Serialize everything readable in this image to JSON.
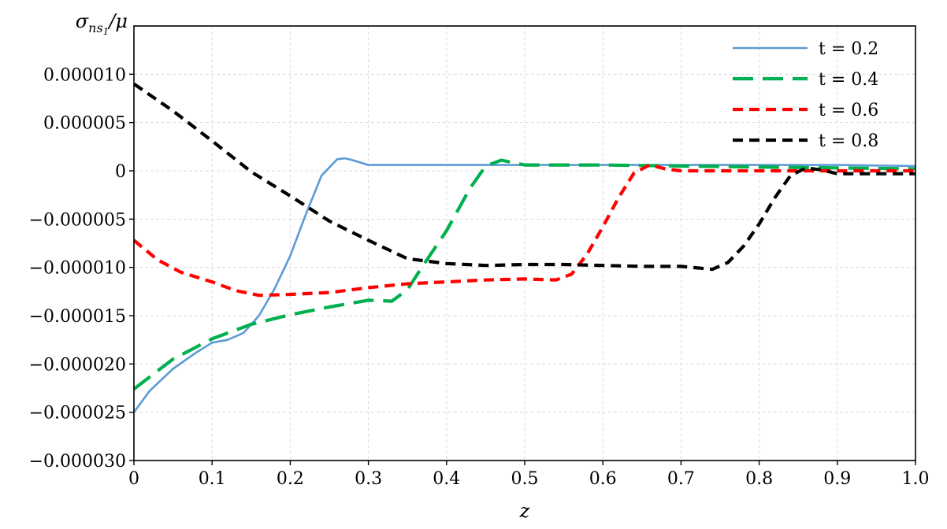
{
  "chart_data": {
    "type": "line",
    "title": "",
    "xlabel": "z",
    "ylabel": "σns1/μ",
    "xlim": [
      0,
      1.0
    ],
    "ylim": [
      -3e-05,
      1.5e-05
    ],
    "grid": true,
    "legend_position": "top-right",
    "x_ticks": [
      0,
      0.1,
      0.2,
      0.3,
      0.4,
      0.5,
      0.6,
      0.7,
      0.8,
      0.9,
      1.0
    ],
    "x_tick_labels": [
      "0",
      "0.1",
      "0.2",
      "0.3",
      "0.4",
      "0.5",
      "0.6",
      "0.7",
      "0.8",
      "0.9",
      "1.0"
    ],
    "y_ticks": [
      1e-05,
      5e-06,
      0,
      -5e-06,
      -1e-05,
      -1.5e-05,
      -2e-05,
      -2.5e-05,
      -3e-05
    ],
    "y_tick_labels": [
      "0.000010",
      "0.000005",
      "0",
      "−0.000005",
      "−0.000010",
      "−0.000015",
      "−0.000020",
      "−0.000025",
      "−0.000030"
    ],
    "series": [
      {
        "name": "t = 0.2",
        "color": "#5b9bd5",
        "style": "solid",
        "x": [
          0,
          0.02,
          0.05,
          0.08,
          0.1,
          0.12,
          0.14,
          0.16,
          0.18,
          0.2,
          0.22,
          0.24,
          0.26,
          0.27,
          0.28,
          0.3,
          0.4,
          0.5,
          0.6,
          0.7,
          0.8,
          0.9,
          1.0
        ],
        "y": [
          -2.5e-05,
          -2.28e-05,
          -2.05e-05,
          -1.88e-05,
          -1.78e-05,
          -1.75e-05,
          -1.68e-05,
          -1.5e-05,
          -1.22e-05,
          -8.8e-06,
          -4.5e-06,
          -5e-07,
          1.2e-06,
          1.3e-06,
          1.1e-06,
          6e-07,
          6e-07,
          6e-07,
          6e-07,
          6e-07,
          6e-07,
          6e-07,
          5e-07
        ]
      },
      {
        "name": "t = 0.4",
        "color": "#00b050",
        "style": "long-dash",
        "x": [
          0,
          0.05,
          0.1,
          0.15,
          0.2,
          0.25,
          0.3,
          0.33,
          0.35,
          0.37,
          0.4,
          0.43,
          0.45,
          0.47,
          0.5,
          0.6,
          0.7,
          0.8,
          0.9,
          1.0
        ],
        "y": [
          -2.26e-05,
          -1.95e-05,
          -1.74e-05,
          -1.59e-05,
          -1.49e-05,
          -1.41e-05,
          -1.34e-05,
          -1.35e-05,
          -1.23e-05,
          -9.8e-06,
          -6.2e-06,
          -1.8e-06,
          5e-07,
          1.1e-06,
          6e-07,
          6e-07,
          5e-07,
          4e-07,
          3e-07,
          2e-07
        ]
      },
      {
        "name": "t = 0.6",
        "color": "#ff0000",
        "style": "dash",
        "x": [
          0,
          0.03,
          0.06,
          0.1,
          0.13,
          0.16,
          0.2,
          0.25,
          0.3,
          0.35,
          0.4,
          0.45,
          0.5,
          0.54,
          0.56,
          0.58,
          0.6,
          0.62,
          0.64,
          0.66,
          0.68,
          0.7,
          0.8,
          0.9,
          1.0
        ],
        "y": [
          -7.2e-06,
          -9.2e-06,
          -1.05e-05,
          -1.15e-05,
          -1.24e-05,
          -1.29e-05,
          -1.28e-05,
          -1.26e-05,
          -1.21e-05,
          -1.17e-05,
          -1.15e-05,
          -1.13e-05,
          -1.12e-05,
          -1.13e-05,
          -1.07e-05,
          -8.6e-06,
          -5.8e-06,
          -2.8e-06,
          -2e-07,
          6e-07,
          2e-07,
          0,
          0,
          0,
          0
        ]
      },
      {
        "name": "t = 0.8",
        "color": "#000000",
        "style": "dash",
        "x": [
          0,
          0.05,
          0.1,
          0.15,
          0.2,
          0.25,
          0.3,
          0.35,
          0.4,
          0.45,
          0.5,
          0.55,
          0.6,
          0.65,
          0.7,
          0.74,
          0.76,
          0.78,
          0.8,
          0.82,
          0.84,
          0.86,
          0.88,
          0.9,
          0.95,
          1.0
        ],
        "y": [
          9e-06,
          6.2e-06,
          3.1e-06,
          -1e-07,
          -2.6e-06,
          -5.2e-06,
          -7.2e-06,
          -9.1e-06,
          -9.6e-06,
          -9.8e-06,
          -9.7e-06,
          -9.7e-06,
          -9.8e-06,
          -9.9e-06,
          -9.9e-06,
          -1.02e-05,
          -9.5e-06,
          -7.8e-06,
          -5.5e-06,
          -2.8e-06,
          -5e-07,
          3e-07,
          1e-07,
          -3e-07,
          -3e-07,
          -3e-07
        ]
      }
    ]
  }
}
